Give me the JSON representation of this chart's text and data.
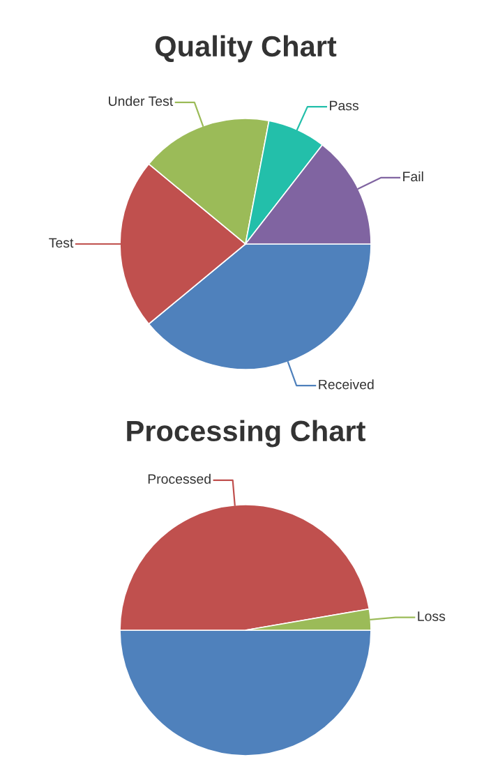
{
  "chart_data": [
    {
      "type": "pie",
      "title": "Quality Chart",
      "categories": [
        "Received",
        "Test",
        "Under Test",
        "Pass",
        "Fail"
      ],
      "values": [
        39,
        22,
        17,
        7.5,
        14.5
      ],
      "colors": [
        "#4f81bc",
        "#c0504e",
        "#9bbb58",
        "#23bfaa",
        "#8064a1"
      ]
    },
    {
      "type": "pie",
      "title": "Processing Chart",
      "categories": [
        null,
        "Processed",
        "Loss"
      ],
      "values": [
        50,
        47.3,
        2.7
      ],
      "colors": [
        "#4f81bc",
        "#c0504e",
        "#9bbb58"
      ]
    }
  ]
}
